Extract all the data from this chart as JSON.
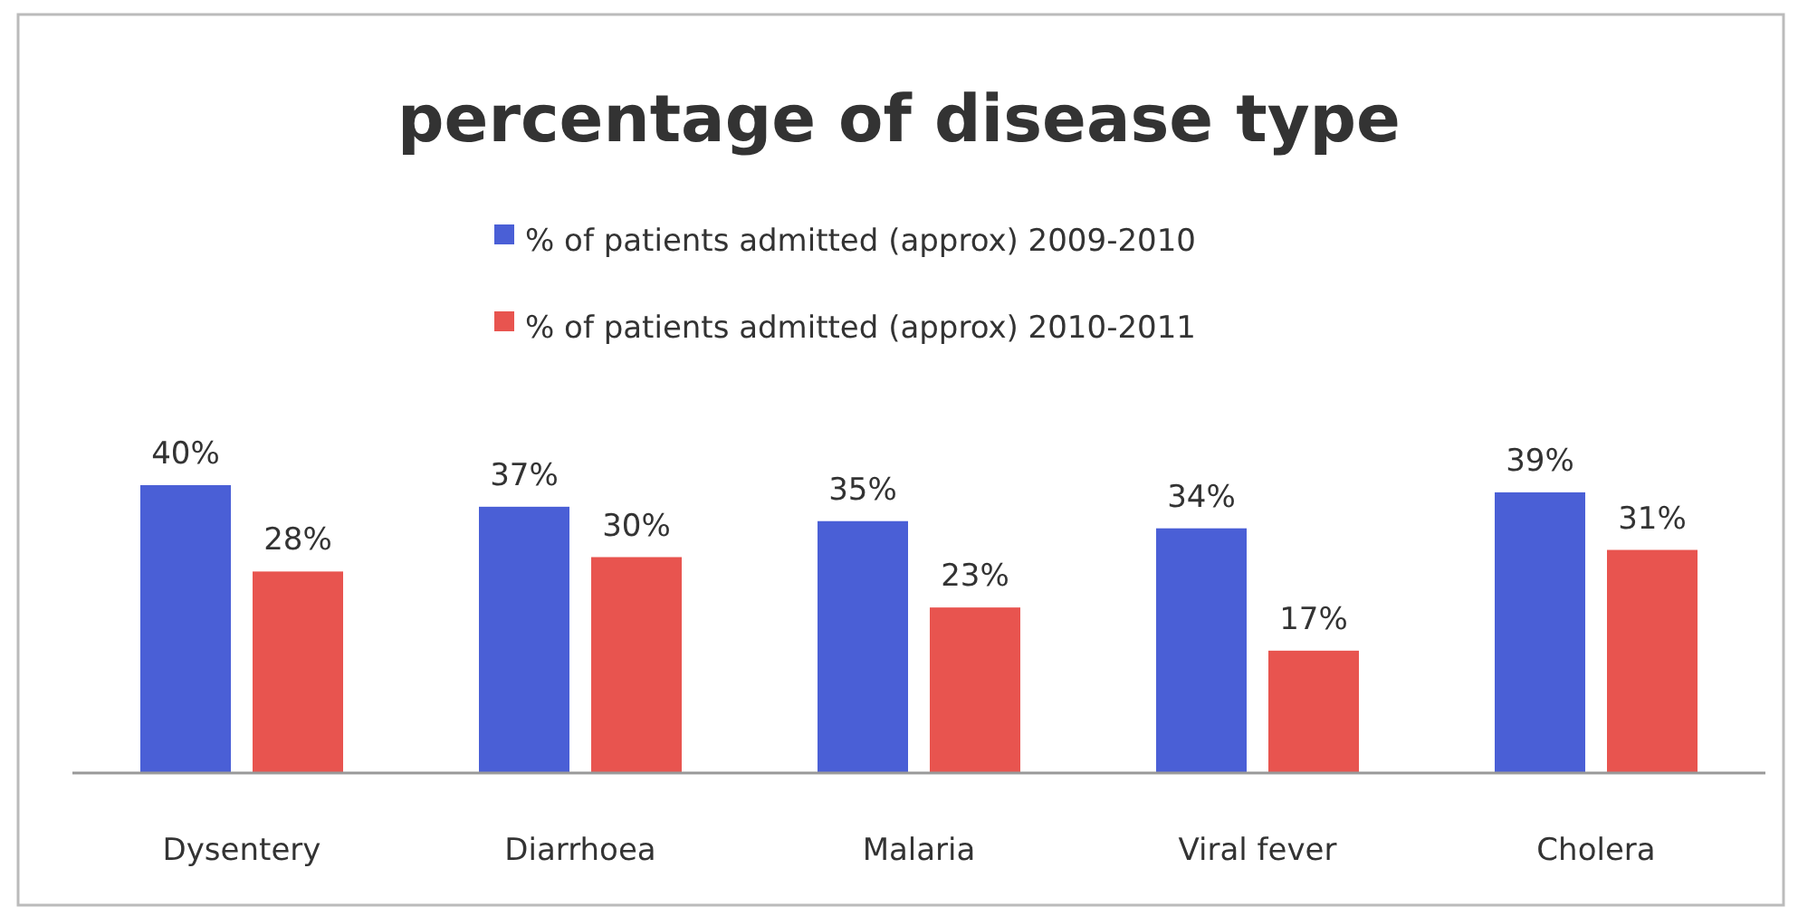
{
  "chart_data": {
    "type": "bar",
    "title": "percentage of disease type",
    "categories": [
      "Dysentery",
      "Diarrhoea",
      "Malaria",
      "Viral fever",
      "Cholera"
    ],
    "series": [
      {
        "name": "% of patients admitted (approx) 2009-2010",
        "color": "#4a5fd6",
        "values": [
          40,
          37,
          35,
          34,
          39
        ],
        "value_labels": [
          "40%",
          "37%",
          "35%",
          "34%",
          "39%"
        ]
      },
      {
        "name": "% of patients admitted (approx) 2010-2011",
        "color": "#e8544f",
        "values": [
          28,
          30,
          23,
          17,
          31
        ],
        "value_labels": [
          "28%",
          "30%",
          "23%",
          "17%",
          "31%"
        ]
      }
    ],
    "legend": "top"
  }
}
